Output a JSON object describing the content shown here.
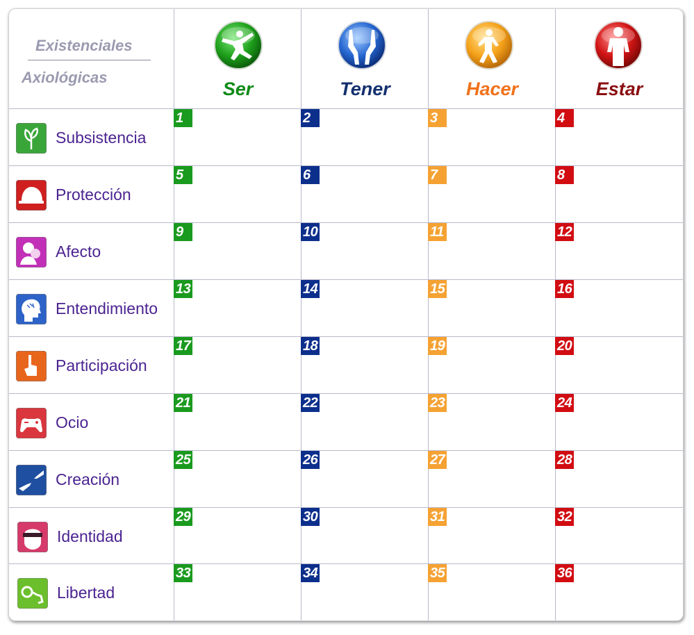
{
  "corner": {
    "top_label": "Existenciales",
    "bottom_label": "Axiológicas"
  },
  "columns": [
    {
      "label": "Ser",
      "color": "#0f8a16",
      "icon": "jumping-person-icon"
    },
    {
      "label": "Tener",
      "color": "#13306e",
      "icon": "open-hands-icon"
    },
    {
      "label": "Hacer",
      "color": "#f0711a",
      "icon": "running-person-icon"
    },
    {
      "label": "Estar",
      "color": "#8a0f12",
      "icon": "standing-person-icon"
    }
  ],
  "cell_colors": [
    "#1a9a1e",
    "#0d2f8c",
    "#f5a233",
    "#d10d12"
  ],
  "rows": [
    {
      "label": "Subsistencia",
      "icon": "sprout-icon",
      "icon_color": "#3aa63a",
      "numbers": [
        "1",
        "2",
        "3",
        "4"
      ]
    },
    {
      "label": "Protección",
      "icon": "helmet-icon",
      "icon_color": "#cf1f1f",
      "numbers": [
        "5",
        "6",
        "7",
        "8"
      ]
    },
    {
      "label": "Afecto",
      "icon": "couple-icon",
      "icon_color": "#c230b8",
      "numbers": [
        "9",
        "10",
        "11",
        "12"
      ]
    },
    {
      "label": "Entendimiento",
      "icon": "head-profile-icon",
      "icon_color": "#2d63c8",
      "numbers": [
        "13",
        "14",
        "15",
        "16"
      ]
    },
    {
      "label": "Participación",
      "icon": "raised-hand-icon",
      "icon_color": "#e8651c",
      "numbers": [
        "17",
        "18",
        "19",
        "20"
      ]
    },
    {
      "label": "Ocio",
      "icon": "gamepad-icon",
      "icon_color": "#d9363e",
      "numbers": [
        "21",
        "22",
        "23",
        "24"
      ]
    },
    {
      "label": "Creación",
      "icon": "creation-hands-icon",
      "icon_color": "#1f4fa0",
      "numbers": [
        "25",
        "26",
        "27",
        "28"
      ]
    },
    {
      "label": "Identidad",
      "icon": "masked-face-icon",
      "icon_color": "#d63a6a",
      "numbers": [
        "29",
        "30",
        "31",
        "32"
      ]
    },
    {
      "label": "Libertad",
      "icon": "handcuffs-icon",
      "icon_color": "#6cbf2c",
      "numbers": [
        "33",
        "34",
        "35",
        "36"
      ]
    }
  ]
}
